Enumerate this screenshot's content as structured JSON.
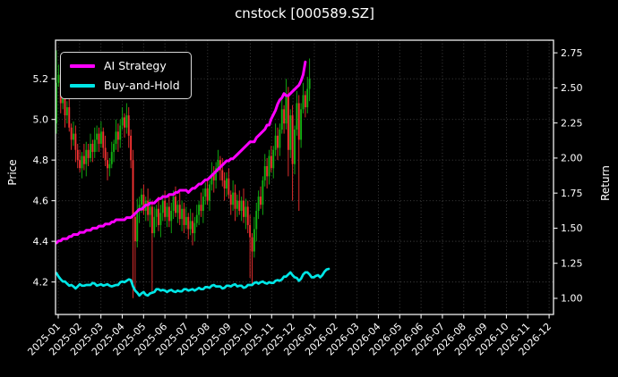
{
  "title": "cnstock [000589.SZ]",
  "axes": {
    "left_label": "Price",
    "right_label": "Return"
  },
  "legend": {
    "position": "upper left",
    "items": [
      {
        "label": "AI Strategy",
        "color": "#ff00ff"
      },
      {
        "label": "Buy-and-Hold",
        "color": "#00e6e6"
      }
    ]
  },
  "colors": {
    "background": "#000000",
    "text": "#ffffff",
    "grid": "#454545",
    "axis": "#f0f0f0",
    "candle_up": "#12b112",
    "candle_down": "#f23131",
    "ai_line": "#ff00ff",
    "bh_line": "#00e6e6"
  },
  "chart_data": {
    "type": "candlestick",
    "title": "cnstock [000589.SZ]",
    "grid": true,
    "legend_position": "upper left",
    "x_tick_labels": [
      "2025-01",
      "2025-02",
      "2025-03",
      "2025-04",
      "2025-05",
      "2025-06",
      "2025-07",
      "2025-08",
      "2025-09",
      "2025-10",
      "2025-11",
      "2025-12",
      "2026-01",
      "2026-02",
      "2026-03",
      "2026-04",
      "2026-05",
      "2026-06",
      "2026-07",
      "2026-08",
      "2026-09",
      "2026-10",
      "2026-11",
      "2026-12"
    ],
    "price_axis": {
      "label": "Price",
      "ticks": [
        5.2,
        5.0,
        4.8,
        4.6,
        4.4,
        4.2
      ],
      "tick_labels": [
        "5.2",
        "5.0",
        "4.8",
        "4.6",
        "4.4",
        "4.2"
      ],
      "min": 4.04,
      "max": 5.39
    },
    "return_axis": {
      "label": "Return",
      "ticks": [
        2.75,
        2.5,
        2.25,
        2.0,
        1.75,
        1.5,
        1.25,
        1.0
      ],
      "tick_labels": [
        "2.75",
        "2.50",
        "2.25",
        "2.00",
        "1.75",
        "1.50",
        "1.25",
        "1.00"
      ],
      "min": 0.885,
      "max": 2.84
    },
    "candles": {
      "data_span_note": "daily bars 2025-01 to late 2025-12",
      "first_open": 4.98,
      "closes": [
        5.18,
        5.22,
        5.08,
        5.12,
        5.02,
        5.06,
        4.96,
        4.9,
        4.93,
        4.85,
        4.8,
        4.76,
        4.82,
        4.78,
        4.85,
        4.81,
        4.88,
        4.84,
        4.9,
        4.93,
        4.88,
        4.94,
        4.86,
        4.8,
        4.76,
        4.78,
        4.84,
        4.88,
        4.94,
        4.9,
        4.97,
        5.01,
        4.96,
        5.02,
        4.92,
        4.8,
        4.52,
        4.4,
        4.55,
        4.58,
        4.63,
        4.55,
        4.6,
        4.53,
        4.57,
        4.44,
        4.52,
        4.56,
        4.48,
        4.54,
        4.6,
        4.52,
        4.57,
        4.5,
        4.55,
        4.62,
        4.54,
        4.58,
        4.51,
        4.56,
        4.48,
        4.52,
        4.46,
        4.5,
        4.44,
        4.49,
        4.53,
        4.58,
        4.55,
        4.62,
        4.66,
        4.6,
        4.68,
        4.73,
        4.7,
        4.76,
        4.8,
        4.75,
        4.7,
        4.66,
        4.71,
        4.63,
        4.58,
        4.64,
        4.56,
        4.6,
        4.55,
        4.6,
        4.52,
        4.57,
        4.48,
        4.42,
        4.35,
        4.46,
        4.55,
        4.62,
        4.58,
        4.7,
        4.77,
        4.72,
        4.82,
        4.76,
        4.85,
        4.92,
        4.86,
        4.95,
        5.05,
        4.98,
        5.12,
        4.85,
        5.02,
        4.78,
        4.95,
        5.08,
        4.9,
        5.05,
        5.12,
        5.06,
        5.15,
        5.2
      ],
      "wick_high_pattern": [
        0.03,
        0.05,
        0.02,
        0.06,
        0.04
      ],
      "wick_low_pattern": [
        0.04,
        0.02,
        0.05,
        0.03,
        0.06
      ],
      "high_overrides": {
        "0": 5.34,
        "106": 5.1,
        "108": 5.2,
        "116": 5.18,
        "119": 5.3
      },
      "low_overrides": {
        "0": 4.93,
        "36": 4.12,
        "37": 4.15,
        "45": 4.15,
        "91": 4.22,
        "92": 4.18,
        "109": 4.72,
        "111": 4.6,
        "114": 4.55
      }
    },
    "series": [
      {
        "name": "AI Strategy",
        "axis": "return",
        "color": "#ff00ff",
        "style": "step",
        "indices": [
          0,
          5,
          11,
          18,
          24,
          30,
          36,
          38,
          41,
          45,
          50,
          55,
          58,
          62,
          66,
          71,
          75,
          79,
          83,
          86,
          89,
          93,
          96,
          100,
          103,
          105,
          107,
          109,
          111,
          113,
          115,
          116,
          117
        ],
        "values": [
          1.4,
          1.43,
          1.47,
          1.5,
          1.53,
          1.56,
          1.58,
          1.62,
          1.65,
          1.68,
          1.72,
          1.74,
          1.77,
          1.76,
          1.8,
          1.85,
          1.9,
          1.97,
          2.0,
          2.04,
          2.09,
          2.12,
          2.18,
          2.24,
          2.35,
          2.42,
          2.45,
          2.44,
          2.47,
          2.5,
          2.55,
          2.6,
          2.69
        ]
      },
      {
        "name": "Buy-and-Hold",
        "axis": "return",
        "color": "#00e6e6",
        "style": "wiggle",
        "indices": [
          0,
          1,
          3,
          5,
          9,
          11,
          14,
          17,
          20,
          23,
          27,
          30,
          33,
          35,
          37,
          39,
          41,
          43,
          45,
          48,
          51,
          54,
          57,
          61,
          64,
          67,
          71,
          74,
          78,
          81,
          84,
          88,
          91,
          94,
          97,
          100,
          103,
          106,
          108,
          110,
          112,
          114,
          116,
          118,
          120,
          122,
          124,
          126,
          128
        ],
        "values": [
          1.18,
          1.15,
          1.12,
          1.1,
          1.08,
          1.1,
          1.09,
          1.1,
          1.09,
          1.1,
          1.09,
          1.11,
          1.12,
          1.13,
          1.05,
          1.03,
          1.045,
          1.02,
          1.04,
          1.06,
          1.05,
          1.06,
          1.05,
          1.06,
          1.055,
          1.07,
          1.08,
          1.09,
          1.07,
          1.09,
          1.1,
          1.08,
          1.09,
          1.11,
          1.12,
          1.11,
          1.12,
          1.13,
          1.16,
          1.18,
          1.16,
          1.13,
          1.17,
          1.19,
          1.14,
          1.16,
          1.15,
          1.19,
          1.22
        ]
      }
    ]
  }
}
